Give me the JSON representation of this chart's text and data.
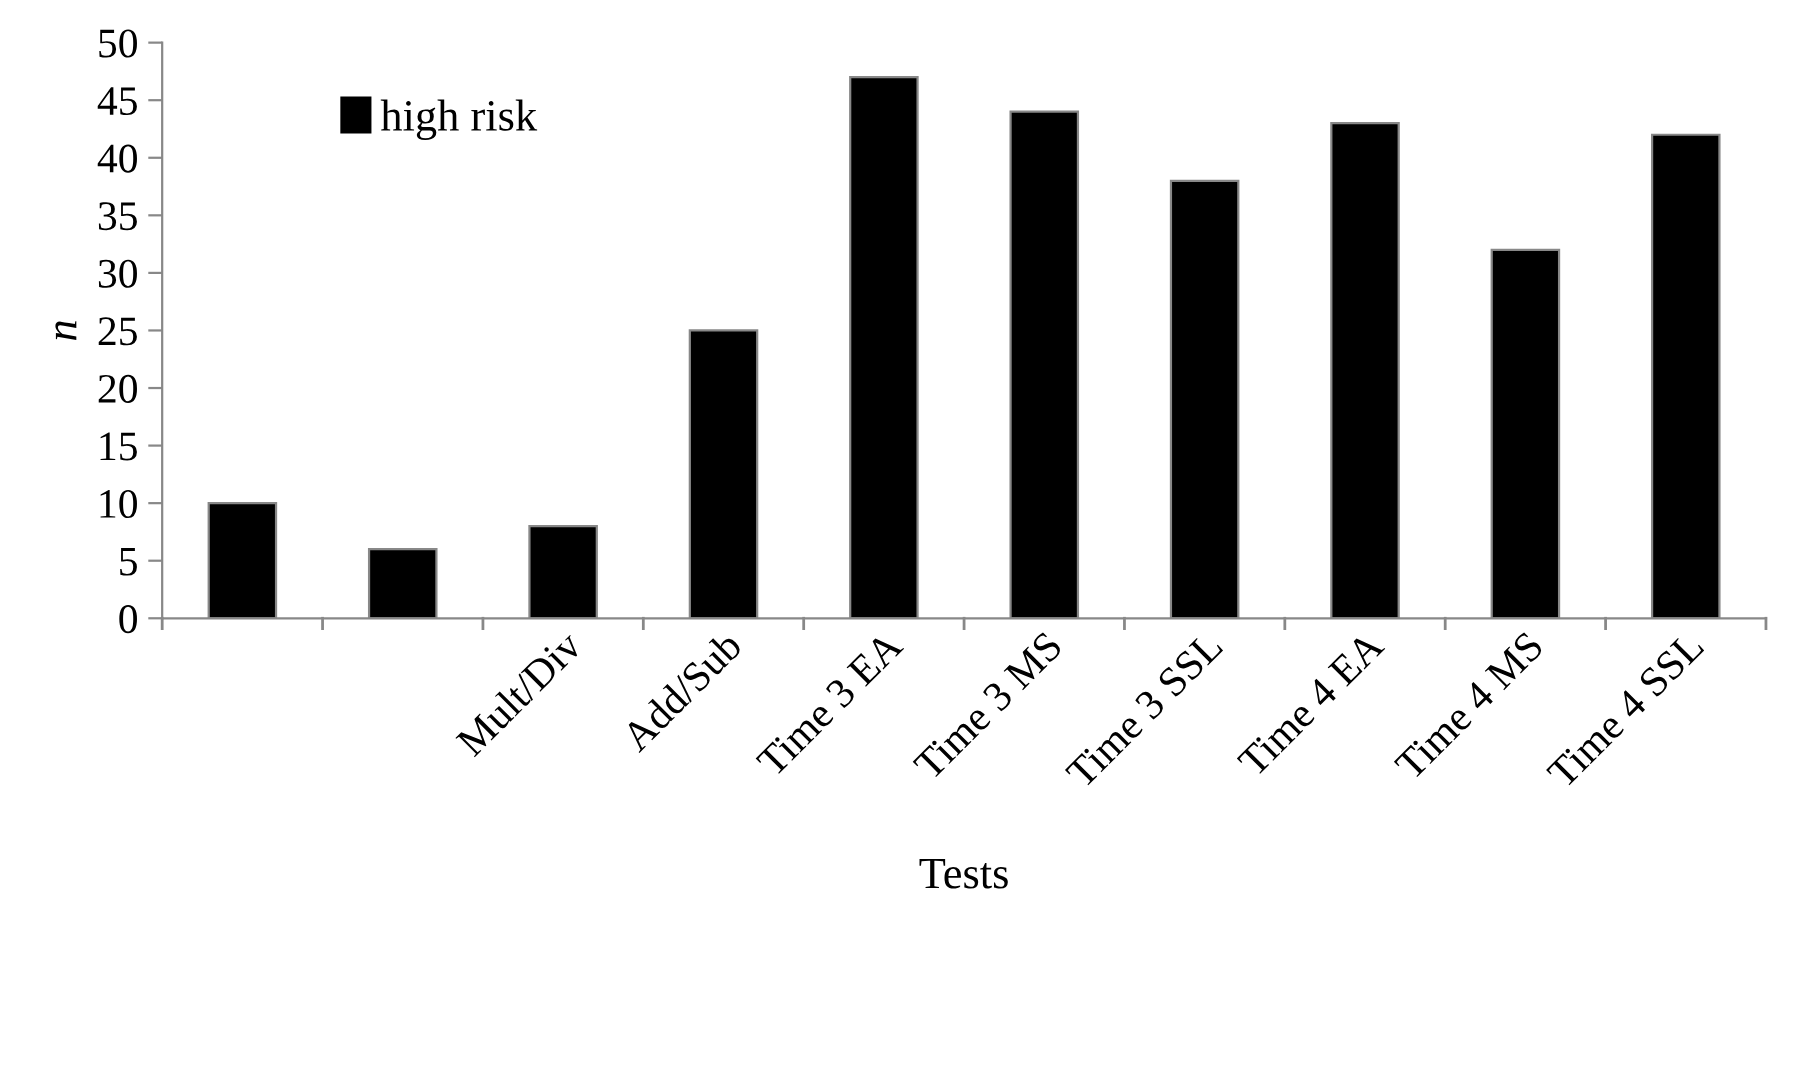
{
  "chart_data": {
    "type": "bar",
    "xlabel": "Tests",
    "ylabel": "n",
    "categories": [
      null,
      null,
      "Mult/Div",
      "Add/Sub",
      "Time 3 EA",
      "Time 3 MS",
      "Time 3 SSL",
      "Time 4 EA",
      "Time 4 MS",
      "Time 4 SSL"
    ],
    "series": [
      {
        "name": "high risk",
        "color": "#000000",
        "values": [
          10,
          6,
          8,
          25,
          47,
          44,
          38,
          43,
          32,
          42
        ]
      }
    ],
    "ylim": [
      0,
      50
    ],
    "yticks": [
      0,
      5,
      10,
      15,
      20,
      25,
      30,
      35,
      40,
      45,
      50
    ],
    "grid": false,
    "legend": "top left"
  }
}
